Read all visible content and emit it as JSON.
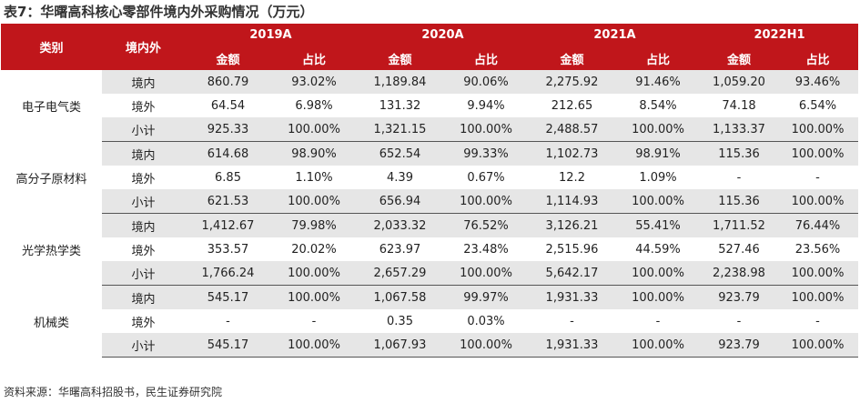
{
  "title": "表7：华曙高科核心零部件境内外采购情况（万元）",
  "headers": {
    "category": "类别",
    "region": "境内外",
    "years": [
      "2019A",
      "2020A",
      "2021A",
      "2022H1"
    ],
    "amount": "金额",
    "share": "占比"
  },
  "groups": [
    {
      "category": "电子电气类",
      "rows": [
        {
          "region": "境内",
          "values": [
            "860.79",
            "93.02%",
            "1,189.84",
            "90.06%",
            "2,275.92",
            "91.46%",
            "1,059.20",
            "93.46%"
          ]
        },
        {
          "region": "境外",
          "values": [
            "64.54",
            "6.98%",
            "131.32",
            "9.94%",
            "212.65",
            "8.54%",
            "74.18",
            "6.54%"
          ]
        },
        {
          "region": "小计",
          "values": [
            "925.33",
            "100.00%",
            "1,321.15",
            "100.00%",
            "2,488.57",
            "100.00%",
            "1,133.37",
            "100.00%"
          ]
        }
      ]
    },
    {
      "category": "高分子原材料",
      "rows": [
        {
          "region": "境内",
          "values": [
            "614.68",
            "98.90%",
            "652.54",
            "99.33%",
            "1,102.73",
            "98.91%",
            "115.36",
            "100.00%"
          ]
        },
        {
          "region": "境外",
          "values": [
            "6.85",
            "1.10%",
            "4.39",
            "0.67%",
            "12.2",
            "1.09%",
            "-",
            "-"
          ]
        },
        {
          "region": "小计",
          "values": [
            "621.53",
            "100.00%",
            "656.94",
            "100.00%",
            "1,114.93",
            "100.00%",
            "115.36",
            "100.00%"
          ]
        }
      ]
    },
    {
      "category": "光学热学类",
      "rows": [
        {
          "region": "境内",
          "values": [
            "1,412.67",
            "79.98%",
            "2,033.32",
            "76.52%",
            "3,126.21",
            "55.41%",
            "1,711.52",
            "76.44%"
          ]
        },
        {
          "region": "境外",
          "values": [
            "353.57",
            "20.02%",
            "623.97",
            "23.48%",
            "2,515.96",
            "44.59%",
            "527.46",
            "23.56%"
          ]
        },
        {
          "region": "小计",
          "values": [
            "1,766.24",
            "100.00%",
            "2,657.29",
            "100.00%",
            "5,642.17",
            "100.00%",
            "2,238.98",
            "100.00%"
          ]
        }
      ]
    },
    {
      "category": "机械类",
      "rows": [
        {
          "region": "境内",
          "values": [
            "545.17",
            "100.00%",
            "1,067.58",
            "99.97%",
            "1,931.33",
            "100.00%",
            "923.79",
            "100.00%"
          ]
        },
        {
          "region": "境外",
          "values": [
            "-",
            "-",
            "0.35",
            "0.03%",
            "-",
            "-",
            "-",
            "-"
          ]
        },
        {
          "region": "小计",
          "values": [
            "545.17",
            "100.00%",
            "1,067.93",
            "100.00%",
            "1,931.33",
            "100.00%",
            "923.79",
            "100.00%"
          ]
        }
      ]
    }
  ],
  "source": "资料来源：华曙高科招股书，民生证券研究院",
  "colors": {
    "header_bg": "#c0161b",
    "row_shade": "#e6e6e6"
  }
}
